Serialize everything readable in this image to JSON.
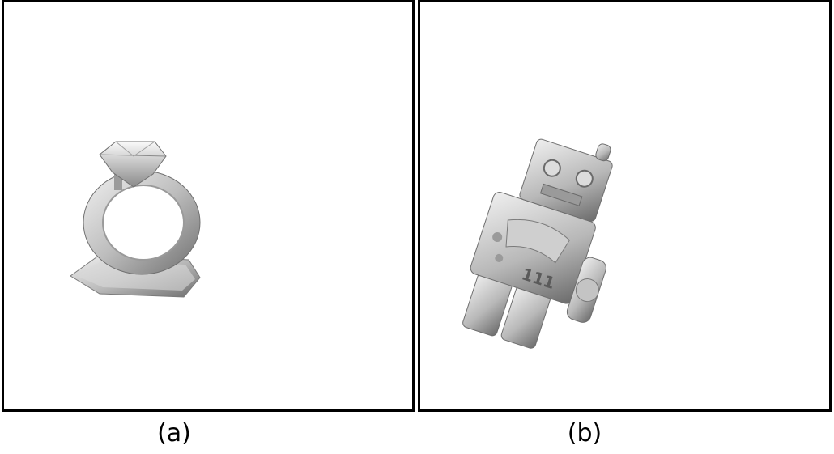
{
  "panels": [
    {
      "caption": "(a)",
      "object": "ring-figurine"
    },
    {
      "caption": "(b)",
      "object": "robot-figurine",
      "engraving": "111"
    }
  ],
  "colors": {
    "border": "#000000",
    "background": "#ffffff",
    "metal_light": "#e6e6e6",
    "metal_dark": "#6e6e6e"
  }
}
